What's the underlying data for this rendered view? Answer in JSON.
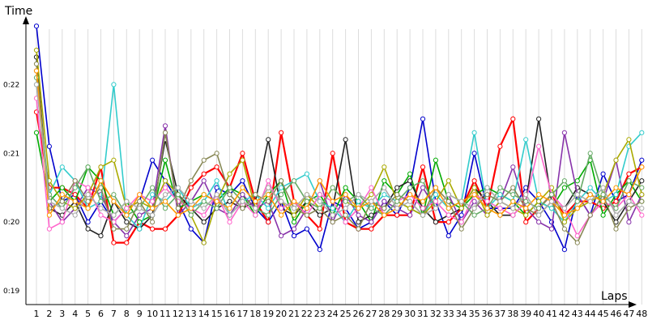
{
  "chart_data": {
    "type": "line",
    "xlabel": "Laps",
    "ylabel": "Time",
    "categories": [
      "1",
      "2",
      "3",
      "4",
      "5",
      "6",
      "7",
      "8",
      "9",
      "10",
      "11",
      "12",
      "13",
      "14",
      "15",
      "16",
      "17",
      "18",
      "19",
      "20",
      "21",
      "22",
      "23",
      "24",
      "25",
      "26",
      "27",
      "28",
      "29",
      "30",
      "31",
      "32",
      "33",
      "34",
      "35",
      "36",
      "37",
      "38",
      "39",
      "40",
      "41",
      "42",
      "43",
      "44",
      "45",
      "46",
      "47",
      "48"
    ],
    "y_ticks": [
      {
        "label": "0:19",
        "value": 19
      },
      {
        "label": "0:20",
        "value": 20
      },
      {
        "label": "0:21",
        "value": 21
      },
      {
        "label": "0:22",
        "value": 22
      }
    ],
    "ylim": [
      18.8,
      22.9
    ],
    "grid": true,
    "colors": [
      "#0000cc",
      "#ff0000",
      "#00aa00",
      "#222222",
      "#8833aa",
      "#33cccc",
      "#aaaa00",
      "#ff66cc",
      "#888855",
      "#66aa66",
      "#ff9900",
      "#aaaaaa"
    ],
    "series": [
      {
        "values": [
          22.85,
          21.1,
          20.3,
          20.4,
          20.0,
          20.3,
          20.0,
          20.2,
          20.3,
          20.9,
          20.6,
          20.3,
          19.9,
          19.7,
          20.5,
          20.4,
          20.6,
          20.2,
          20.0,
          20.3,
          19.8,
          19.9,
          19.6,
          20.3,
          20.2,
          19.9,
          20.0,
          20.3,
          20.1,
          20.5,
          21.5,
          20.3,
          19.8,
          20.1,
          21.0,
          20.2,
          20.2,
          20.2,
          20.5,
          20.3,
          20.0,
          19.6,
          20.4,
          20.1,
          20.7,
          20.3,
          20.4,
          20.9
        ]
      },
      {
        "values": [
          21.6,
          20.5,
          20.5,
          20.4,
          20.2,
          20.8,
          19.7,
          19.7,
          20.0,
          19.9,
          19.9,
          20.1,
          20.5,
          20.7,
          20.8,
          20.5,
          21.0,
          20.3,
          20.0,
          21.3,
          20.3,
          20.1,
          19.9,
          21.0,
          20.0,
          19.9,
          19.9,
          20.1,
          20.1,
          20.1,
          20.8,
          20.0,
          20.0,
          20.2,
          20.6,
          20.2,
          21.1,
          21.5,
          20.0,
          20.2,
          20.4,
          20.1,
          20.3,
          20.3,
          20.2,
          20.3,
          20.7,
          20.8
        ]
      },
      {
        "values": [
          21.3,
          20.3,
          20.5,
          20.3,
          20.8,
          20.6,
          20.1,
          20.3,
          20.0,
          20.1,
          20.9,
          20.2,
          20.3,
          20.4,
          20.3,
          20.5,
          20.4,
          20.1,
          20.4,
          20.6,
          20.0,
          20.3,
          20.4,
          20.1,
          20.5,
          20.3,
          20.0,
          20.6,
          20.4,
          20.7,
          20.1,
          20.9,
          20.3,
          20.2,
          20.4,
          20.5,
          20.4,
          20.3,
          20.1,
          20.3,
          20.2,
          20.5,
          20.6,
          20.9,
          20.1,
          20.4,
          20.6,
          20.3
        ]
      },
      {
        "values": [
          22.4,
          20.2,
          20.1,
          20.3,
          19.9,
          19.8,
          20.3,
          20.0,
          19.9,
          20.1,
          21.2,
          20.4,
          20.2,
          20.0,
          20.2,
          20.3,
          20.2,
          20.3,
          21.2,
          20.2,
          20.1,
          20.3,
          20.1,
          20.2,
          21.2,
          20.0,
          20.1,
          20.2,
          20.5,
          20.6,
          20.2,
          20.0,
          20.1,
          20.2,
          20.5,
          20.3,
          20.1,
          20.1,
          20.3,
          21.5,
          20.3,
          20.2,
          20.5,
          20.4,
          20.3,
          20.0,
          20.3,
          20.6
        ]
      },
      {
        "values": [
          22.2,
          20.3,
          20.0,
          20.2,
          20.5,
          20.4,
          20.0,
          19.8,
          20.1,
          20.2,
          21.4,
          20.1,
          20.3,
          20.6,
          20.2,
          20.1,
          20.4,
          20.2,
          20.3,
          19.8,
          19.9,
          20.2,
          20.6,
          20.0,
          20.4,
          20.1,
          20.0,
          20.3,
          20.2,
          20.1,
          20.5,
          20.2,
          20.4,
          20.0,
          20.3,
          20.1,
          20.3,
          20.8,
          20.2,
          20.0,
          19.9,
          21.3,
          20.4,
          20.1,
          20.3,
          20.9,
          20.0,
          20.4
        ]
      },
      {
        "values": [
          22.0,
          20.4,
          20.8,
          20.6,
          20.2,
          20.3,
          22.0,
          20.1,
          19.9,
          20.4,
          20.3,
          20.5,
          20.2,
          20.3,
          20.6,
          20.1,
          20.3,
          20.4,
          20.2,
          20.5,
          20.6,
          20.7,
          20.3,
          20.2,
          20.0,
          20.3,
          20.2,
          20.4,
          20.3,
          20.2,
          20.1,
          20.4,
          20.2,
          20.3,
          21.3,
          20.2,
          20.4,
          20.3,
          21.2,
          20.3,
          20.2,
          20.0,
          20.3,
          20.5,
          20.3,
          20.4,
          21.1,
          21.3
        ]
      },
      {
        "values": [
          22.5,
          20.6,
          20.3,
          20.2,
          20.4,
          20.8,
          20.9,
          20.2,
          20.3,
          20.2,
          20.6,
          20.4,
          20.1,
          19.7,
          20.3,
          20.7,
          20.9,
          20.2,
          20.5,
          20.3,
          20.1,
          20.4,
          20.2,
          20.5,
          20.3,
          20.2,
          20.4,
          20.8,
          20.3,
          20.2,
          20.1,
          20.3,
          20.6,
          20.2,
          20.5,
          20.1,
          20.3,
          20.2,
          20.1,
          20.3,
          20.5,
          20.0,
          20.2,
          20.3,
          20.4,
          20.9,
          21.2,
          20.4
        ]
      },
      {
        "values": [
          21.8,
          19.9,
          20.0,
          20.6,
          20.5,
          20.1,
          20.0,
          20.2,
          20.4,
          20.3,
          20.5,
          20.3,
          20.2,
          20.1,
          20.4,
          20.0,
          20.3,
          20.1,
          20.6,
          20.2,
          20.3,
          20.1,
          20.4,
          20.3,
          20.0,
          20.2,
          20.5,
          20.1,
          20.3,
          20.4,
          20.2,
          20.3,
          20.1,
          20.0,
          20.4,
          20.3,
          20.2,
          20.1,
          20.3,
          21.1,
          20.4,
          20.2,
          19.8,
          20.1,
          20.3,
          20.2,
          20.4,
          20.1
        ]
      },
      {
        "values": [
          22.3,
          20.2,
          20.3,
          20.6,
          20.3,
          20.5,
          19.9,
          19.9,
          20.3,
          20.0,
          21.3,
          20.2,
          20.6,
          20.9,
          21.0,
          20.4,
          20.2,
          20.4,
          20.3,
          20.6,
          20.2,
          20.1,
          20.2,
          20.0,
          20.1,
          19.9,
          20.3,
          20.2,
          20.4,
          20.3,
          20.1,
          20.5,
          20.3,
          19.9,
          20.2,
          20.4,
          20.3,
          20.5,
          20.2,
          20.1,
          20.3,
          19.9,
          19.7,
          20.1,
          20.4,
          19.9,
          20.2,
          20.3
        ]
      },
      {
        "values": [
          22.1,
          20.4,
          20.2,
          20.5,
          20.8,
          20.3,
          20.4,
          20.1,
          20.2,
          20.5,
          20.2,
          20.4,
          20.1,
          20.3,
          20.2,
          20.5,
          20.3,
          20.2,
          20.1,
          20.4,
          20.6,
          20.3,
          20.2,
          20.5,
          20.3,
          20.4,
          20.2,
          20.1,
          20.3,
          20.5,
          20.6,
          20.2,
          20.4,
          20.3,
          20.1,
          20.2,
          20.5,
          20.4,
          20.3,
          20.2,
          20.4,
          20.6,
          20.3,
          21.0,
          20.4,
          20.2,
          20.6,
          20.5
        ]
      },
      {
        "values": [
          22.2,
          20.1,
          20.4,
          20.3,
          20.2,
          20.6,
          20.3,
          20.1,
          20.4,
          20.2,
          20.3,
          20.1,
          20.2,
          20.4,
          20.3,
          20.2,
          20.5,
          20.3,
          20.4,
          20.1,
          20.3,
          20.2,
          20.6,
          20.3,
          20.4,
          20.2,
          20.3,
          20.1,
          20.2,
          20.4,
          20.3,
          20.5,
          20.2,
          20.3,
          20.4,
          20.2,
          20.1,
          20.3,
          20.2,
          20.4,
          20.3,
          20.1,
          20.2,
          20.4,
          20.3,
          20.5,
          20.4,
          20.8
        ]
      },
      {
        "values": [
          22.0,
          20.3,
          20.2,
          20.1,
          20.4,
          20.2,
          20.1,
          20.3,
          20.2,
          20.1,
          20.4,
          20.5,
          20.3,
          20.2,
          20.4,
          20.1,
          20.3,
          20.2,
          20.5,
          20.3,
          20.2,
          20.4,
          20.3,
          20.1,
          20.2,
          20.4,
          20.3,
          20.5,
          20.2,
          20.3,
          20.1,
          20.2,
          20.4,
          20.3,
          20.2,
          20.5,
          20.3,
          20.2,
          20.4,
          20.1,
          20.3,
          20.2,
          20.4,
          20.3,
          20.5,
          20.1,
          20.3,
          20.2
        ]
      }
    ]
  }
}
